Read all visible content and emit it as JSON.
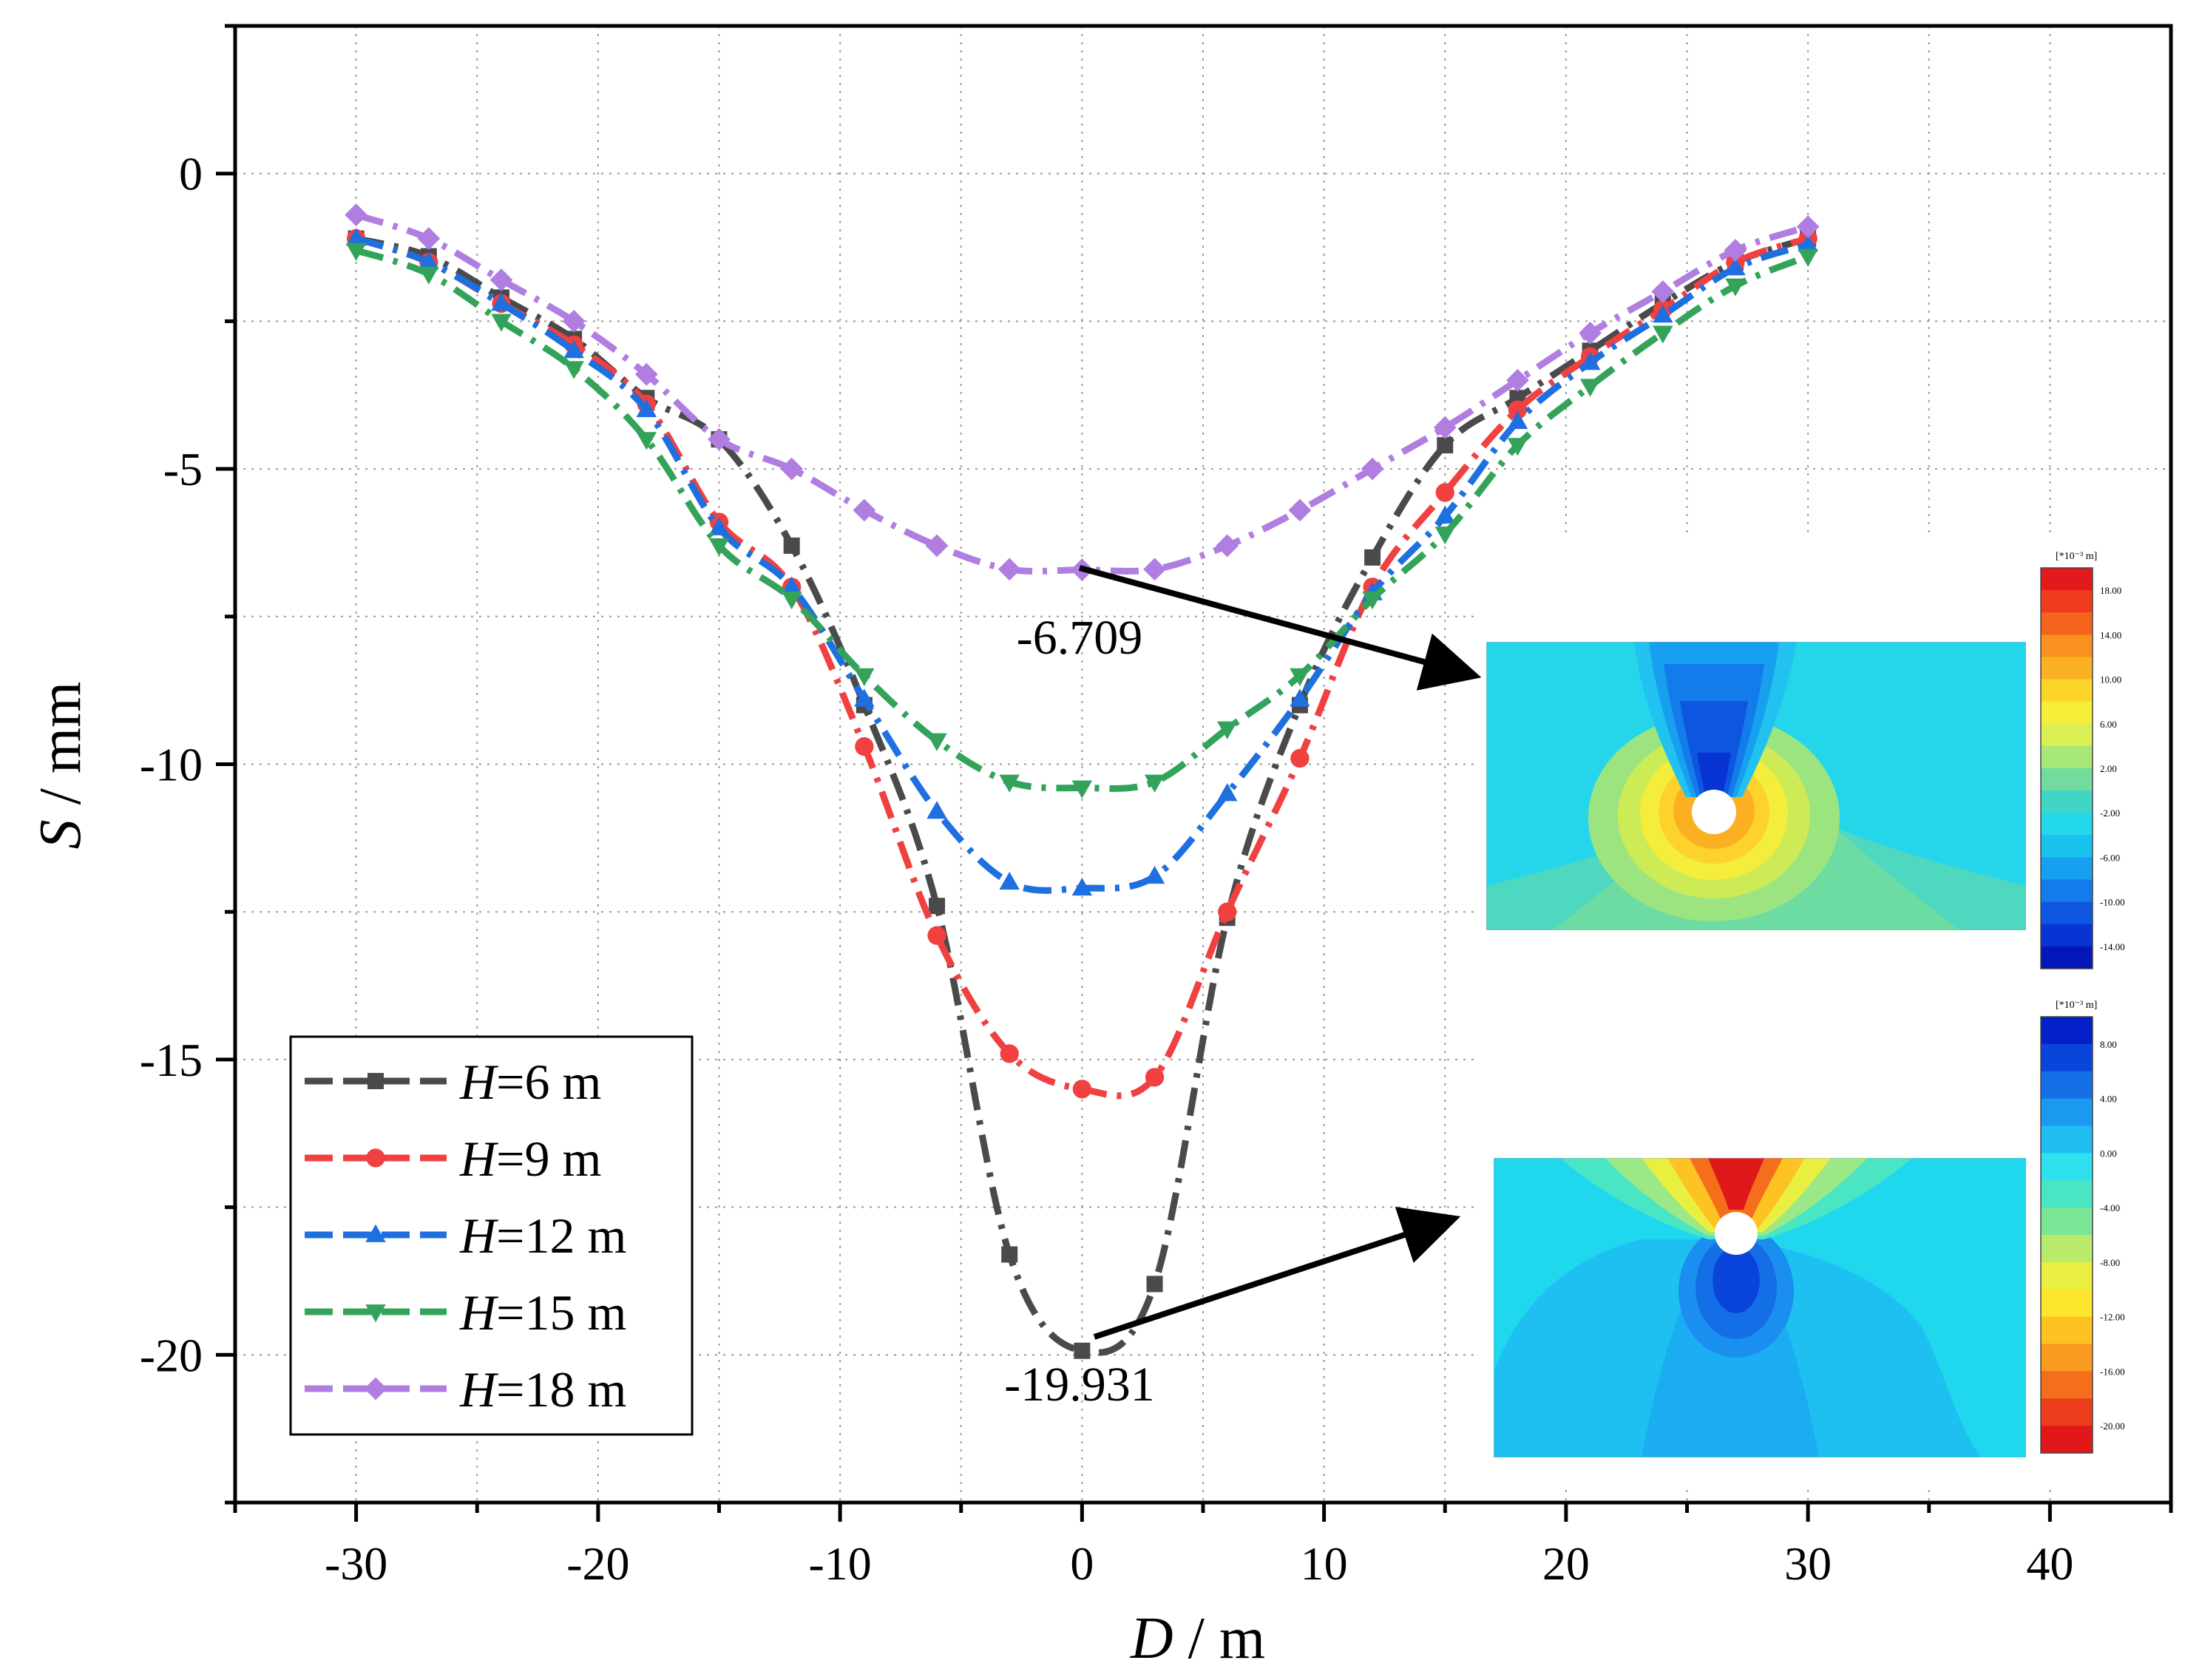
{
  "chart_data": {
    "type": "line",
    "title": "",
    "xlabel_var": "D",
    "xlabel_unit": " / m",
    "ylabel_var": "S",
    "ylabel_unit": " / mm",
    "xlim": [
      -35,
      45
    ],
    "ylim": [
      -22.5,
      2.5
    ],
    "x_ticks": [
      -30,
      -20,
      -10,
      0,
      10,
      20,
      30,
      40
    ],
    "x_tick_labels": [
      "-30",
      "-20",
      "-10",
      "0",
      "10",
      "20",
      "30",
      "40"
    ],
    "y_ticks": [
      0,
      -5,
      -10,
      -15,
      -20
    ],
    "y_tick_labels": [
      "0",
      "-5",
      "-10",
      "-15",
      "-20"
    ],
    "grid": true,
    "legend_position": "bottom-left",
    "series": [
      {
        "name": "H=6 m",
        "var": "H",
        "label_rest": "=6 m",
        "color": "#4a4a4a",
        "marker": "square",
        "x": [
          -30,
          -27,
          -24,
          -21,
          -18,
          -15,
          -12,
          -9,
          -6,
          -3,
          0,
          3,
          6,
          9,
          12,
          15,
          18,
          21,
          24,
          27,
          30
        ],
        "y": [
          -1.1,
          -1.4,
          -2.1,
          -2.8,
          -3.8,
          -4.5,
          -6.3,
          -9.0,
          -12.4,
          -18.3,
          -19.931,
          -18.8,
          -12.6,
          -9.0,
          -6.5,
          -4.6,
          -3.8,
          -3.0,
          -2.2,
          -1.5,
          -1.1
        ]
      },
      {
        "name": "H=9 m",
        "var": "H",
        "label_rest": "=9 m",
        "color": "#f04040",
        "marker": "circle",
        "x": [
          -30,
          -27,
          -24,
          -21,
          -18,
          -15,
          -12,
          -9,
          -6,
          -3,
          0,
          3,
          6,
          9,
          12,
          15,
          18,
          21,
          24,
          27,
          30
        ],
        "y": [
          -1.1,
          -1.5,
          -2.2,
          -2.9,
          -3.9,
          -5.9,
          -7.0,
          -9.7,
          -12.9,
          -14.9,
          -15.5,
          -15.3,
          -12.5,
          -9.9,
          -7.0,
          -5.4,
          -4.0,
          -3.1,
          -2.3,
          -1.5,
          -1.1
        ]
      },
      {
        "name": "H=12 m",
        "var": "H",
        "label_rest": "=12 m",
        "color": "#1e6fe0",
        "marker": "triangle-up",
        "x": [
          -30,
          -27,
          -24,
          -21,
          -18,
          -15,
          -12,
          -9,
          -6,
          -3,
          0,
          3,
          6,
          9,
          12,
          15,
          18,
          21,
          24,
          27,
          30
        ],
        "y": [
          -1.1,
          -1.5,
          -2.2,
          -3.0,
          -4.0,
          -6.0,
          -7.0,
          -8.9,
          -10.8,
          -12.0,
          -12.1,
          -11.9,
          -10.5,
          -8.9,
          -7.1,
          -5.8,
          -4.2,
          -3.2,
          -2.4,
          -1.6,
          -1.2
        ]
      },
      {
        "name": "H=15 m",
        "var": "H",
        "label_rest": "=15 m",
        "color": "#33a35a",
        "marker": "triangle-down",
        "x": [
          -30,
          -27,
          -24,
          -21,
          -18,
          -15,
          -12,
          -9,
          -6,
          -3,
          0,
          3,
          6,
          9,
          12,
          15,
          18,
          21,
          24,
          27,
          30
        ],
        "y": [
          -1.3,
          -1.7,
          -2.5,
          -3.3,
          -4.5,
          -6.3,
          -7.2,
          -8.5,
          -9.6,
          -10.3,
          -10.4,
          -10.3,
          -9.4,
          -8.5,
          -7.2,
          -6.1,
          -4.6,
          -3.6,
          -2.7,
          -1.9,
          -1.4
        ]
      },
      {
        "name": "H=18 m",
        "var": "H",
        "label_rest": "=18 m",
        "color": "#b07ee0",
        "marker": "diamond",
        "x": [
          -30,
          -27,
          -24,
          -21,
          -18,
          -15,
          -12,
          -9,
          -6,
          -3,
          0,
          3,
          6,
          9,
          12,
          15,
          18,
          21,
          24,
          27,
          30
        ],
        "y": [
          -0.7,
          -1.1,
          -1.8,
          -2.5,
          -3.4,
          -4.5,
          -5.0,
          -5.7,
          -6.3,
          -6.7,
          -6.709,
          -6.7,
          -6.3,
          -5.7,
          -5.0,
          -4.3,
          -3.5,
          -2.7,
          -2.0,
          -1.3,
          -0.9
        ]
      }
    ],
    "annotations": [
      {
        "text": "-6.709",
        "x": 0,
        "y": -6.709
      },
      {
        "text": "-19.931",
        "x": 0,
        "y": -19.931
      }
    ]
  },
  "insets": [
    {
      "name": "contour-top",
      "unit_label": "[*10⁻³ m]",
      "tick_labels": [
        "18.00",
        "14.00",
        "10.00",
        "6.00",
        "2.00",
        "-2.00",
        "-6.00",
        "-10.00",
        "-14.00"
      ],
      "colors": [
        "#e31a1c",
        "#f03c1e",
        "#f5641e",
        "#f99020",
        "#fcb124",
        "#fdd52a",
        "#f7ee3a",
        "#d9ef54",
        "#a7e878",
        "#72dc9e",
        "#40d6c5",
        "#24d8ec",
        "#1ac2f0",
        "#179ff0",
        "#137cea",
        "#0d57e0",
        "#0734d2",
        "#0316b8"
      ]
    },
    {
      "name": "contour-bottom",
      "unit_label": "[*10⁻³ m]",
      "tick_labels": [
        "8.00",
        "4.00",
        "0.00",
        "-4.00",
        "-8.00",
        "-12.00",
        "-16.00",
        "-20.00"
      ],
      "colors": [
        "#0320c8",
        "#0a45db",
        "#146fe6",
        "#1b98ef",
        "#22bdf3",
        "#2fe0ef",
        "#4ae6c4",
        "#7be596",
        "#b8ea6c",
        "#e9ef40",
        "#fde62b",
        "#fdc322",
        "#fa9a1e",
        "#f46e1c",
        "#ec3e1c",
        "#e0181a"
      ]
    }
  ]
}
